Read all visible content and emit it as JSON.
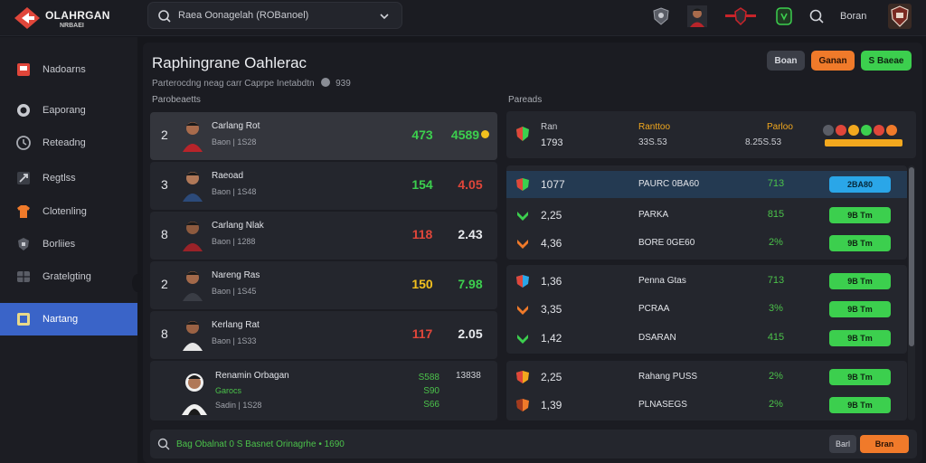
{
  "app": {
    "logo_text": "OLAHRGAN",
    "logo_sub": "NRBAEI",
    "search_text": "Raea Oonagelah (ROBanoel)",
    "header_label": "Boran"
  },
  "colors": {
    "accent": "#3a64c8",
    "green": "#3ccf4e",
    "orange": "#f07a2a",
    "blue": "#2aa6e8",
    "red": "#e0463a",
    "yellow": "#f2c01e"
  },
  "sidebar": {
    "items": [
      {
        "label": "Nadoarns",
        "icon": "flag-icon"
      },
      {
        "label": "Eaporang",
        "icon": "target-icon"
      },
      {
        "label": "Reteadng",
        "icon": "clock-icon"
      },
      {
        "label": "Regtlss",
        "icon": "flag-outline-icon"
      },
      {
        "label": "Clotenling",
        "icon": "shirt-icon"
      },
      {
        "label": "Borliies",
        "icon": "stats-icon"
      },
      {
        "label": "Gratelgting",
        "icon": "grid-icon"
      },
      {
        "label": "Nartang",
        "icon": "star-icon"
      }
    ]
  },
  "page": {
    "title": "Raphingrane Oahlerac",
    "subtitle": "Parterocdng neag carr Caprpe Inetabdtn",
    "subtitle_num": "939",
    "buttons": [
      "Boan",
      "Ganan",
      "S Baeae"
    ],
    "left_col_label": "Parobeaetts",
    "right_col_label": "Pareads"
  },
  "players": [
    {
      "rank": "2",
      "name": "Carlang Rot",
      "meta": "Baon  |  1S28",
      "score": "473",
      "score_color": "green",
      "odds": "4589",
      "badge": true
    },
    {
      "rank": "3",
      "name": "Raeoad",
      "meta": "Baon  |  1S48",
      "score": "154",
      "score_color": "green",
      "odds": "4.05",
      "badge": false
    },
    {
      "rank": "8",
      "name": "Carlang Nlak",
      "meta": "Baon  |  1288",
      "score": "118",
      "score_color": "red",
      "odds": "2.43",
      "badge": false
    },
    {
      "rank": "2",
      "name": "Nareng Ras",
      "meta": "Baon  |  1S45",
      "score": "150",
      "score_color": "yellow",
      "odds": "7.98",
      "badge": false
    },
    {
      "rank": "8",
      "name": "Kerlang Rat",
      "meta": "Baon  |  1S33",
      "score": "117",
      "score_color": "red",
      "odds": "2.05",
      "badge": false
    }
  ],
  "featured": {
    "name": "Renamin Orbagan",
    "meta": "Garocs",
    "meta2": "Sadin  |  1S28",
    "nums": [
      "S588",
      "S90",
      "S66"
    ],
    "total": "13838"
  },
  "right_header": {
    "col1": "Ran",
    "col1_val": "1793",
    "col2": "Ranttoo",
    "col2_val": "33S.53",
    "col3": "Parloo",
    "col3_val": "8.25S.53"
  },
  "rows": [
    {
      "num": "1077",
      "name": "PAURC 0BA60",
      "pct": "713",
      "btn": "2BA80",
      "btn_color": "blue",
      "icon": "shield-icon"
    },
    {
      "num": "2,25",
      "name": "PARKA",
      "pct": "815",
      "btn": "9B Tm",
      "btn_color": "green",
      "icon": "chevron-icon"
    },
    {
      "num": "4,36",
      "name": "BORE 0GE60",
      "pct": "2%",
      "btn": "9B Tm",
      "btn_color": "green",
      "icon": "chevron-icon"
    },
    {
      "num": "1,36",
      "name": "Penna Gtas",
      "pct": "713",
      "btn": "9B Tm",
      "btn_color": "green",
      "icon": "shield-icon"
    },
    {
      "num": "3,35",
      "name": "PCRAA",
      "pct": "3%",
      "btn": "9B Tm",
      "btn_color": "green",
      "icon": "chevron-icon"
    },
    {
      "num": "1,42",
      "name": "DSARAN",
      "pct": "415",
      "btn": "9B Tm",
      "btn_color": "green",
      "icon": "chevron-icon"
    },
    {
      "num": "2,25",
      "name": "Rahang PUSS",
      "pct": "2%",
      "btn": "9B Tm",
      "btn_color": "green",
      "icon": "shield-icon"
    },
    {
      "num": "1,39",
      "name": "PLNASEGS",
      "pct": "2%",
      "btn": "9B Tm",
      "btn_color": "green",
      "icon": "shield-icon"
    }
  ],
  "bottom": {
    "text": "Bag Obalnat 0 S Basnet Orinagrhe • 1690",
    "btn1": "Barl",
    "btn2": "Bran"
  }
}
